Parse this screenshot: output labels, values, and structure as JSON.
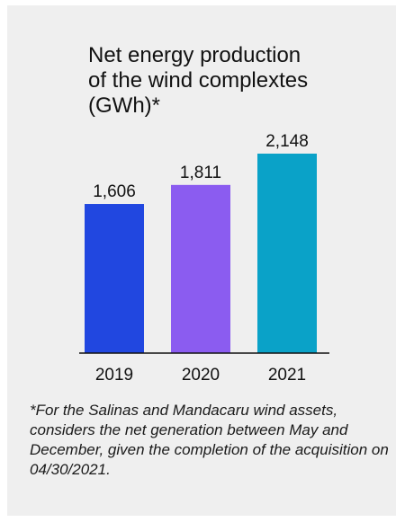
{
  "chart_data": {
    "type": "bar",
    "title": "Net energy production\nof the wind complextes\n(GWh)*",
    "categories": [
      "2019",
      "2020",
      "2021"
    ],
    "values": [
      1606,
      1811,
      2148
    ],
    "value_labels": [
      "1,606",
      "1,811",
      "2,148"
    ],
    "colors": [
      "#2147e0",
      "#8b5cf0",
      "#0aa2c8"
    ],
    "ylim": [
      0,
      2148
    ],
    "grid": false,
    "axis_color": "#111111"
  },
  "footnote": "*For the Salinas and Mandacaru wind assets, considers the net generation between May and December, given the completion of the acquisition on 04/30/2021."
}
